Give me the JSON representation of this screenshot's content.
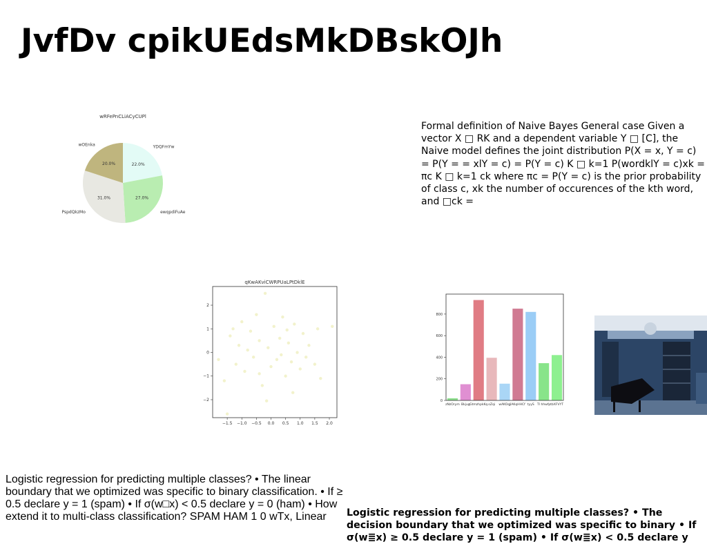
{
  "title": "JvfDv cpikUEdsMkDBskOJh",
  "pie_chart": {
    "type": "pie",
    "title": "wRFePnCLiACyCUPl",
    "categories": [
      "YDQFmYw",
      "ewqpdiFuAe",
      "PspdQkzMo",
      "wOEnka"
    ],
    "values": [
      22,
      27,
      31,
      20
    ],
    "value_labels": [
      "22.0%",
      "27.0%",
      "31.0%",
      "20.0%"
    ],
    "colors": [
      "#e3fbf6",
      "#b9edb1",
      "#e8e8e2",
      "#bfb57e"
    ]
  },
  "paragraph_1": "Formal definition of Naive Bayes General case Given a vector X □ RK and a dependent variable Y □ [C], the Naive model defines the joint distribution P(X = x, Y = c) = P(Y = = xlY = c) = P(Y = c) K □ k=1 P(wordklY = c)xk = πc K □ k=1 ck where πc = P(Y = c) is the prior probability of class c, xk the number of occurences of the kth word, and □ck =",
  "scatter_chart": {
    "type": "scatter",
    "title": "qKwAKviCWRPUaLPtDklE",
    "color": "#f2f2cc",
    "x": [
      -1.6,
      -1.4,
      -1.3,
      -1.2,
      -1.1,
      -1.0,
      -0.9,
      -0.8,
      -0.7,
      -0.6,
      -0.5,
      -0.4,
      -0.3,
      -0.2,
      -0.1,
      0,
      0.1,
      0.2,
      0.3,
      0.4,
      0.5,
      0.6,
      0.7,
      0.8,
      0.9,
      1.0,
      1.1,
      1.2,
      1.3,
      1.5,
      1.6,
      1.7,
      2.1,
      -1.8,
      -0.4,
      0.35,
      0.75,
      -0.15,
      -1.5,
      0.55
    ],
    "y": [
      -1.2,
      0.7,
      1.0,
      -0.5,
      0.3,
      1.3,
      -0.8,
      0.1,
      0.9,
      -0.2,
      1.6,
      0.5,
      -1.4,
      2.5,
      0.2,
      -0.6,
      1.1,
      -0.3,
      0.6,
      1.5,
      -1.0,
      0.4,
      -0.4,
      1.2,
      0.0,
      -0.7,
      0.8,
      -0.2,
      0.3,
      -0.5,
      1.0,
      -1.1,
      1.1,
      -0.3,
      -0.9,
      -0.1,
      -1.7,
      -2.05,
      -2.6,
      0.95
    ],
    "xlim": [
      -2.0,
      2.26
    ],
    "ylim": [
      -2.76,
      2.79
    ],
    "xticks": [
      {
        "value": -1.5,
        "label": "−1.5"
      },
      {
        "value": -1.0,
        "label": "−1.0"
      },
      {
        "value": -0.5,
        "label": "−0.5"
      },
      {
        "value": 0,
        "label": "0.0"
      },
      {
        "value": 0.5,
        "label": "0.5"
      },
      {
        "value": 1.0,
        "label": "1.0"
      },
      {
        "value": 1.5,
        "label": "1.5"
      },
      {
        "value": 2.0,
        "label": "2.0"
      }
    ],
    "yticks": [
      {
        "value": -2,
        "label": "−2"
      },
      {
        "value": -1,
        "label": "−1"
      },
      0,
      1,
      2
    ]
  },
  "bar_chart": {
    "type": "bar",
    "categories": [
      "zNzOrym",
      "Bkjug",
      "GtmzhpkKq",
      "oZqi",
      "wAKOqJ",
      "iAKqHHCf",
      "tyyS",
      "Tl hhwfp",
      "tbXFVYT"
    ],
    "values": [
      20,
      150,
      930,
      395,
      155,
      850,
      820,
      345,
      420
    ],
    "colors": [
      "#8fe08f",
      "#e08fd2",
      "#e07c84",
      "#e8b8bb",
      "#aad6f6",
      "#d07a92",
      "#9bcdf6",
      "#88e48a",
      "#8ef090"
    ],
    "ylim": [
      0,
      985
    ],
    "yticks": [
      0,
      200,
      400,
      600,
      800
    ]
  },
  "paragraph_2": "Logistic regression for predicting multiple classes? • The linear boundary that we optimized was specific to binary classification. • If ≥ 0.5 declare y = 1 (spam) • If σ(w□x) < 0.5 declare y = 0 (ham) • How extend it to multi-class classification? SPAM HAM 1 0 wTx, Linear",
  "paragraph_3": "Logistic regression for predicting multiple classes? • The decision boundary that we optimized was specific to binary • If σ(w≣x) ≥ 0.5 declare y = 1 (spam) • If σ(w≣x) < 0.5 declare y"
}
